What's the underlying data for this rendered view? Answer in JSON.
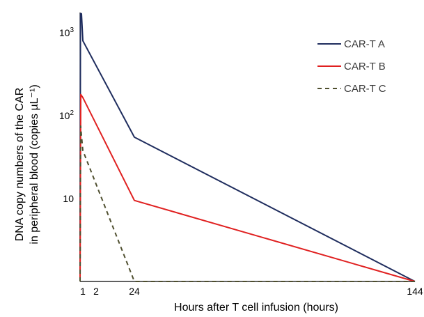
{
  "chart_data": {
    "type": "line",
    "title": "",
    "xlabel": "Hours after T cell infusion (hours)",
    "ylabel_lines": [
      "DNA copy numbers of the CAR",
      "in peripheral blood (copies µL⁻¹)"
    ],
    "x_scale": "piecewise",
    "y_scale": "log",
    "xlim": [
      0,
      144
    ],
    "ylim": [
      1,
      1700
    ],
    "x_ticks": [
      {
        "value": 1,
        "label": "1"
      },
      {
        "value": 2,
        "label": "2"
      },
      {
        "value": 24,
        "label": "24"
      },
      {
        "value": 144,
        "label": "144"
      }
    ],
    "y_ticks": [
      {
        "value": 10,
        "label": "10"
      },
      {
        "value": 100,
        "label": "10",
        "sup": "2"
      },
      {
        "value": 1000,
        "label": "10",
        "sup": "3"
      }
    ],
    "grid": false,
    "legend_position": "top-right",
    "series": [
      {
        "name": "CAR-T A",
        "color": "#1f2d5e",
        "dash": "solid",
        "points": [
          [
            0,
            1
          ],
          [
            0.15,
            1700
          ],
          [
            0.5,
            1700
          ],
          [
            1,
            800
          ],
          [
            24,
            55
          ],
          [
            144,
            1
          ]
        ]
      },
      {
        "name": "CAR-T B",
        "color": "#e02020",
        "dash": "solid",
        "points": [
          [
            0,
            1
          ],
          [
            0.25,
            180
          ],
          [
            1,
            165
          ],
          [
            24,
            9.5
          ],
          [
            144,
            1
          ]
        ]
      },
      {
        "name": "CAR-T C",
        "color": "#4f4f2f",
        "dash": "dashed",
        "points": [
          [
            0,
            1
          ],
          [
            0.2,
            75
          ],
          [
            1,
            38
          ],
          [
            24,
            1
          ],
          [
            144,
            1
          ]
        ]
      }
    ]
  }
}
